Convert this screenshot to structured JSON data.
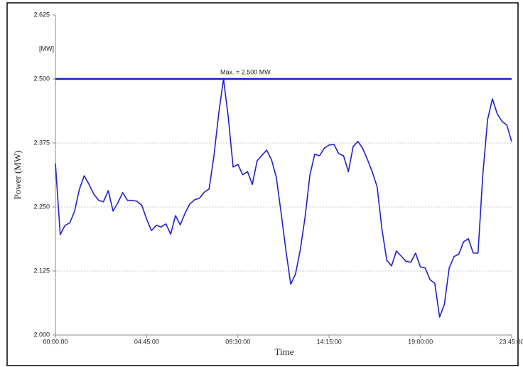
{
  "chart_data": {
    "type": "line",
    "y_unit": "[MW]",
    "y_label": "Power (MW)",
    "x_label": "Time",
    "annotation": "Max. = 2.500 MW",
    "max_line": 2.5,
    "max_line_color": "#1c1cc8",
    "grid": true,
    "x": [
      "00:00:00",
      "00:15:00",
      "00:30:00",
      "00:45:00",
      "01:00:00",
      "01:15:00",
      "01:30:00",
      "01:45:00",
      "02:00:00",
      "02:15:00",
      "02:30:00",
      "02:45:00",
      "03:00:00",
      "03:15:00",
      "03:30:00",
      "03:45:00",
      "04:00:00",
      "04:15:00",
      "04:30:00",
      "04:45:00",
      "05:00:00",
      "05:15:00",
      "05:30:00",
      "05:45:00",
      "06:00:00",
      "06:15:00",
      "06:30:00",
      "06:45:00",
      "07:00:00",
      "07:15:00",
      "07:30:00",
      "07:45:00",
      "08:00:00",
      "08:15:00",
      "08:30:00",
      "08:45:00",
      "09:00:00",
      "09:15:00",
      "09:30:00",
      "09:45:00",
      "10:00:00",
      "10:15:00",
      "10:30:00",
      "10:45:00",
      "11:00:00",
      "11:15:00",
      "11:30:00",
      "11:45:00",
      "12:00:00",
      "12:15:00",
      "12:30:00",
      "12:45:00",
      "13:00:00",
      "13:15:00",
      "13:30:00",
      "13:45:00",
      "14:00:00",
      "14:15:00",
      "14:30:00",
      "14:45:00",
      "15:00:00",
      "15:15:00",
      "15:30:00",
      "15:45:00",
      "16:00:00",
      "16:15:00",
      "16:30:00",
      "16:45:00",
      "17:00:00",
      "17:15:00",
      "17:30:00",
      "17:45:00",
      "18:00:00",
      "18:15:00",
      "18:30:00",
      "18:45:00",
      "19:00:00",
      "19:15:00",
      "19:30:00",
      "19:45:00",
      "20:00:00",
      "20:15:00",
      "20:30:00",
      "20:45:00",
      "21:00:00",
      "21:15:00",
      "21:30:00",
      "21:45:00",
      "22:00:00",
      "22:15:00",
      "22:30:00",
      "22:45:00",
      "23:00:00",
      "23:15:00",
      "23:30:00",
      "23:45:00"
    ],
    "series": [
      {
        "name": "Power",
        "color": "#2020d0",
        "values": [
          2.335,
          2.196,
          2.214,
          2.219,
          2.242,
          2.285,
          2.311,
          2.294,
          2.275,
          2.263,
          2.26,
          2.282,
          2.242,
          2.258,
          2.278,
          2.263,
          2.263,
          2.261,
          2.253,
          2.226,
          2.204,
          2.214,
          2.211,
          2.217,
          2.197,
          2.233,
          2.215,
          2.238,
          2.256,
          2.264,
          2.267,
          2.279,
          2.285,
          2.349,
          2.432,
          2.5,
          2.425,
          2.328,
          2.333,
          2.313,
          2.319,
          2.294,
          2.34,
          2.351,
          2.361,
          2.342,
          2.308,
          2.238,
          2.165,
          2.099,
          2.119,
          2.167,
          2.231,
          2.313,
          2.353,
          2.35,
          2.365,
          2.371,
          2.372,
          2.354,
          2.35,
          2.319,
          2.368,
          2.378,
          2.364,
          2.342,
          2.318,
          2.289,
          2.206,
          2.146,
          2.135,
          2.164,
          2.154,
          2.144,
          2.142,
          2.16,
          2.133,
          2.131,
          2.108,
          2.101,
          2.035,
          2.06,
          2.131,
          2.153,
          2.158,
          2.182,
          2.188,
          2.16,
          2.16,
          2.313,
          2.421,
          2.461,
          2.432,
          2.417,
          2.41,
          2.378
        ]
      }
    ],
    "xlim": [
      "00:00:00",
      "23:45:00"
    ],
    "xticks": [
      "00:00:00",
      "04:45:00",
      "09:30:00",
      "14:15:00",
      "19:00:00",
      "23:45:00"
    ],
    "ylim": [
      2,
      2.625
    ],
    "yticks": [
      {
        "value": 2,
        "label": "2.000"
      },
      2.125,
      {
        "value": 2.25,
        "label": "2.250"
      },
      2.375,
      {
        "value": 2.5,
        "label": "2.500"
      },
      2.625
    ]
  }
}
